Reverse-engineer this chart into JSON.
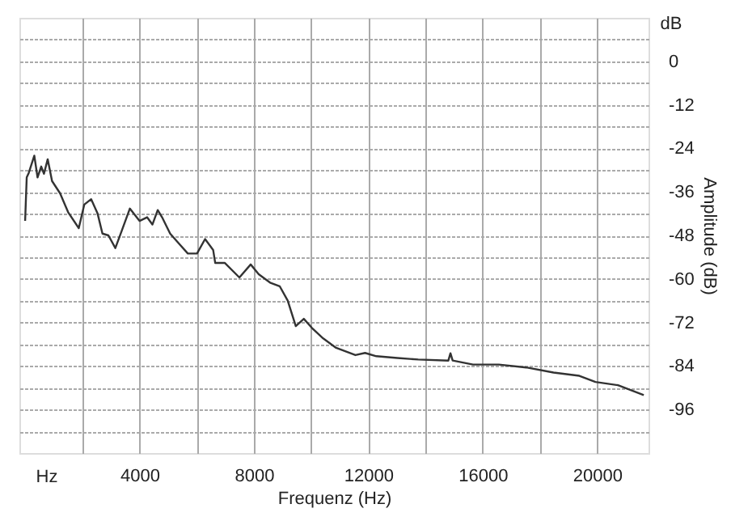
{
  "chart_data": {
    "type": "line",
    "xlabel": "Frequenz (Hz)",
    "ylabel": "Amplitude (dB)",
    "annotations": [
      "Hz",
      "dB"
    ],
    "xlim": [
      -200,
      21800
    ],
    "ylim": [
      -108,
      12
    ],
    "xticks": [
      {
        "value": 2000,
        "label": null
      },
      4000,
      {
        "value": 6000,
        "label": null
      },
      8000,
      {
        "value": 10000,
        "label": null
      },
      12000,
      {
        "value": 14000,
        "label": null
      },
      16000,
      {
        "value": 18000,
        "label": null
      },
      20000
    ],
    "yticks": [
      {
        "value": -102,
        "label": null
      },
      -96,
      {
        "value": -90,
        "label": null
      },
      -84,
      {
        "value": -78,
        "label": null
      },
      -72,
      {
        "value": -66,
        "label": null
      },
      -60,
      {
        "value": -54,
        "label": null
      },
      -48,
      {
        "value": -42,
        "label": null
      },
      -36,
      {
        "value": -30,
        "label": null
      },
      -24,
      {
        "value": -18,
        "label": null
      },
      -12,
      {
        "value": -6,
        "label": null
      },
      0,
      {
        "value": 6,
        "label": null
      }
    ],
    "grid": true,
    "series": [
      {
        "color": "#333333",
        "x": [
          0,
          56,
          130,
          321,
          434,
          563,
          659,
          789,
          941,
          1223,
          1504,
          1876,
          2068,
          2310,
          2535,
          2704,
          2913,
          3155,
          3380,
          3662,
          4000,
          4265,
          4451,
          4637,
          4789,
          5071,
          5352,
          5690,
          6011,
          6293,
          6575,
          6648,
          6986,
          7493,
          7888,
          8169,
          8564,
          8902,
          9183,
          9465,
          9746,
          10028,
          10423,
          10874,
          11550,
          11888,
          12282,
          13015,
          13747,
          14800,
          14874,
          14950,
          15662,
          16564,
          17521,
          18479,
          19381,
          19944,
          20733,
          21634
        ],
        "values": [
          -44,
          -32,
          -30.7,
          -26,
          -32,
          -29,
          -31,
          -27,
          -33,
          -36.4,
          -41.6,
          -46,
          -39.5,
          -38,
          -42,
          -47.5,
          -48,
          -51.5,
          -46.7,
          -40.6,
          -44,
          -43,
          -45,
          -41,
          -43,
          -47.5,
          -50,
          -53,
          -53,
          -49,
          -52,
          -55.6,
          -55.6,
          -59.6,
          -56,
          -58.7,
          -61,
          -62,
          -66,
          -73,
          -71,
          -73.5,
          -76.4,
          -79,
          -81,
          -80.4,
          -81.3,
          -81.8,
          -82.2,
          -82.5,
          -80.5,
          -82.5,
          -83.6,
          -83.6,
          -84.4,
          -85.8,
          -86.7,
          -88.4,
          -89.3,
          -92
        ]
      }
    ]
  }
}
